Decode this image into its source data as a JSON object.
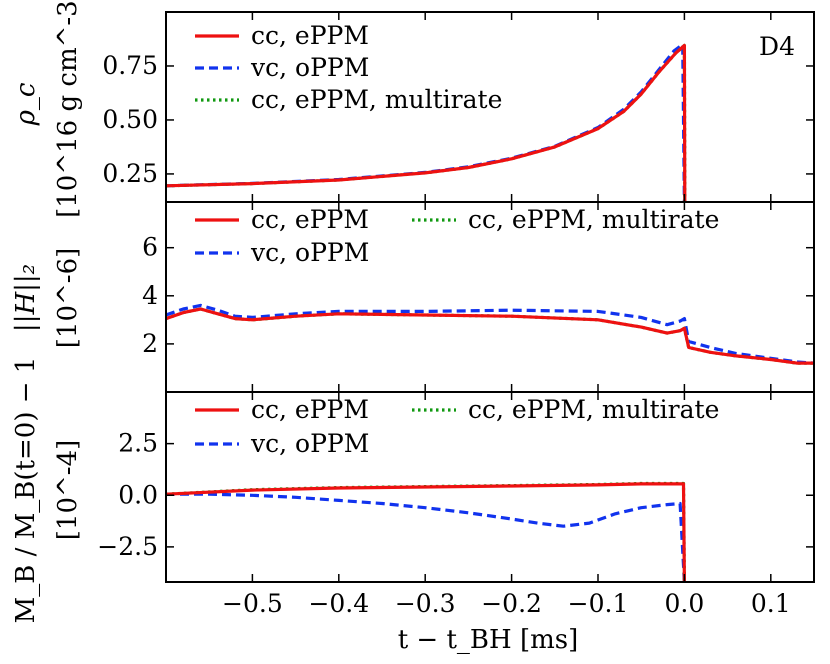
{
  "colors": {
    "series_cc_eppm": "#ee1111",
    "series_vc_oppm": "#1133ee",
    "series_multirate": "#119911"
  },
  "chart_data": [
    {
      "type": "line",
      "panel": "top",
      "annotation": "D4",
      "ylabel_main": "ρ_c",
      "ylabel_units": "[10^16 g cm^-3]",
      "ylim": [
        0.12,
        1.0
      ],
      "yticks": [
        0.25,
        0.5,
        0.75
      ],
      "ytick_labels": [
        "0.25",
        "0.50",
        "0.75"
      ],
      "legend_position": "top-left",
      "series": [
        {
          "name": "cc, ePPM",
          "style": "solid",
          "color_key": "series_cc_eppm",
          "x": [
            -0.6,
            -0.5,
            -0.4,
            -0.3,
            -0.25,
            -0.2,
            -0.15,
            -0.1,
            -0.07,
            -0.05,
            -0.03,
            -0.01,
            0.0,
            0.0005
          ],
          "y": [
            0.195,
            0.205,
            0.222,
            0.255,
            0.28,
            0.32,
            0.375,
            0.46,
            0.54,
            0.62,
            0.72,
            0.81,
            0.845,
            0.12
          ]
        },
        {
          "name": "vc, oPPM",
          "style": "dashed",
          "color_key": "series_vc_oppm",
          "x": [
            -0.6,
            -0.5,
            -0.4,
            -0.3,
            -0.25,
            -0.2,
            -0.15,
            -0.1,
            -0.07,
            -0.05,
            -0.03,
            -0.012,
            -0.002,
            0.0
          ],
          "y": [
            0.195,
            0.206,
            0.224,
            0.257,
            0.283,
            0.323,
            0.378,
            0.465,
            0.55,
            0.63,
            0.73,
            0.82,
            0.85,
            0.12
          ]
        },
        {
          "name": "cc, ePPM, multirate",
          "style": "dotted",
          "color_key": "series_multirate",
          "x": [
            -0.6,
            -0.5,
            -0.4,
            -0.3,
            -0.25,
            -0.2,
            -0.15,
            -0.1,
            -0.07,
            -0.05,
            -0.03,
            -0.01,
            0.0,
            0.0005
          ],
          "y": [
            0.195,
            0.205,
            0.222,
            0.255,
            0.28,
            0.32,
            0.375,
            0.46,
            0.54,
            0.62,
            0.72,
            0.81,
            0.845,
            0.12
          ]
        }
      ]
    },
    {
      "type": "line",
      "panel": "middle",
      "ylabel_main": "||H||₂",
      "ylabel_units": "[10^-6]",
      "ylim": [
        0.0,
        7.9
      ],
      "yticks": [
        2,
        4,
        6
      ],
      "ytick_labels": [
        "2",
        "4",
        "6"
      ],
      "legend_position": "top-left",
      "series": [
        {
          "name": "cc, ePPM",
          "style": "solid",
          "color_key": "series_cc_eppm",
          "x": [
            -0.6,
            -0.58,
            -0.56,
            -0.54,
            -0.52,
            -0.5,
            -0.45,
            -0.4,
            -0.3,
            -0.2,
            -0.1,
            -0.05,
            -0.02,
            -0.005,
            0.0,
            0.005,
            0.03,
            0.06,
            0.1,
            0.13,
            0.15
          ],
          "y": [
            3.05,
            3.3,
            3.45,
            3.25,
            3.05,
            3.0,
            3.15,
            3.25,
            3.2,
            3.15,
            3.0,
            2.7,
            2.45,
            2.55,
            2.65,
            1.85,
            1.65,
            1.5,
            1.35,
            1.2,
            1.2
          ]
        },
        {
          "name": "vc, oPPM",
          "style": "dashed",
          "color_key": "series_vc_oppm",
          "x": [
            -0.6,
            -0.58,
            -0.56,
            -0.54,
            -0.52,
            -0.5,
            -0.45,
            -0.4,
            -0.3,
            -0.2,
            -0.1,
            -0.05,
            -0.02,
            -0.005,
            0.0,
            0.005,
            0.03,
            0.06,
            0.1,
            0.13,
            0.15
          ],
          "y": [
            3.2,
            3.45,
            3.6,
            3.4,
            3.15,
            3.1,
            3.25,
            3.35,
            3.35,
            3.4,
            3.35,
            3.1,
            2.8,
            2.95,
            3.05,
            2.1,
            1.85,
            1.6,
            1.4,
            1.25,
            1.2
          ]
        },
        {
          "name": "cc, ePPM, multirate",
          "style": "dotted",
          "color_key": "series_multirate",
          "x": [
            -0.6,
            -0.58,
            -0.56,
            -0.54,
            -0.52,
            -0.5,
            -0.45,
            -0.4,
            -0.3,
            -0.2,
            -0.1,
            -0.05,
            -0.02,
            -0.005,
            0.0,
            0.005,
            0.03,
            0.06,
            0.1,
            0.13,
            0.15
          ],
          "y": [
            3.05,
            3.3,
            3.45,
            3.25,
            3.05,
            3.0,
            3.15,
            3.25,
            3.2,
            3.15,
            3.0,
            2.7,
            2.45,
            2.55,
            2.65,
            1.85,
            1.65,
            1.5,
            1.35,
            1.2,
            1.2
          ]
        }
      ]
    },
    {
      "type": "line",
      "panel": "bottom",
      "ylabel_main": "M_B / M_B(t=0) − 1",
      "ylabel_units": "[10^-4]",
      "ylim": [
        -4.2,
        5.0
      ],
      "yticks": [
        -2.5,
        0.0,
        2.5
      ],
      "ytick_labels": [
        "−2.5",
        "0.0",
        "2.5"
      ],
      "xlim": [
        -0.6,
        0.15
      ],
      "xticks": [
        -0.5,
        -0.4,
        -0.3,
        -0.2,
        -0.1,
        0.0,
        0.1
      ],
      "xtick_labels": [
        "−0.5",
        "−0.4",
        "−0.3",
        "−0.2",
        "−0.1",
        "0.0",
        "0.1"
      ],
      "xlabel": "t − t_BH [ms]",
      "legend_position": "top-left",
      "series": [
        {
          "name": "cc, ePPM",
          "style": "solid",
          "color_key": "series_cc_eppm",
          "x": [
            -0.6,
            -0.5,
            -0.4,
            -0.3,
            -0.2,
            -0.1,
            -0.05,
            -0.01,
            -0.001,
            0.0
          ],
          "y": [
            0.05,
            0.25,
            0.35,
            0.4,
            0.45,
            0.5,
            0.55,
            0.55,
            0.55,
            -4.2
          ]
        },
        {
          "name": "vc, oPPM",
          "style": "dashed",
          "color_key": "series_vc_oppm",
          "x": [
            -0.6,
            -0.55,
            -0.5,
            -0.45,
            -0.4,
            -0.35,
            -0.3,
            -0.25,
            -0.2,
            -0.17,
            -0.14,
            -0.11,
            -0.08,
            -0.05,
            -0.02,
            -0.005,
            0.0
          ],
          "y": [
            0.05,
            0.05,
            0.0,
            -0.1,
            -0.25,
            -0.4,
            -0.6,
            -0.85,
            -1.15,
            -1.35,
            -1.5,
            -1.35,
            -0.9,
            -0.6,
            -0.45,
            -0.4,
            -4.2
          ]
        },
        {
          "name": "cc, ePPM, multirate",
          "style": "dotted",
          "color_key": "series_multirate",
          "x": [
            -0.6,
            -0.5,
            -0.4,
            -0.3,
            -0.2,
            -0.1,
            -0.05,
            -0.01,
            -0.001,
            0.0
          ],
          "y": [
            0.05,
            0.27,
            0.37,
            0.42,
            0.47,
            0.52,
            0.57,
            0.57,
            0.57,
            -4.2
          ]
        }
      ]
    }
  ]
}
